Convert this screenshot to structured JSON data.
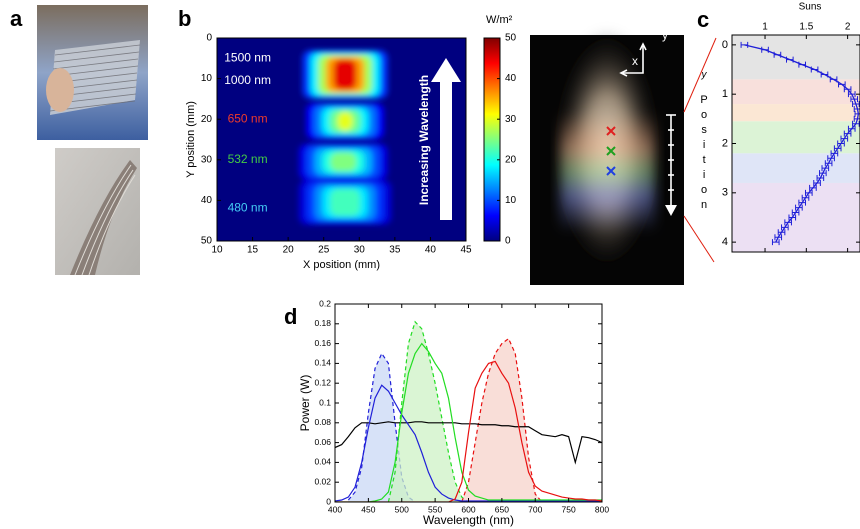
{
  "panel_labels": [
    "a",
    "b",
    "c",
    "d"
  ],
  "beam_photo": {
    "axes": [
      "x",
      "y"
    ]
  },
  "chart_data": [
    {
      "type": "heatmap",
      "xlabel": "X position (mm)",
      "ylabel": "Y position (mm)",
      "xlim": [
        10,
        45
      ],
      "xticks": [
        10,
        15,
        20,
        25,
        30,
        35,
        40,
        45
      ],
      "ylim": [
        0,
        50
      ],
      "yticks": [
        0,
        10,
        20,
        30,
        40,
        50
      ],
      "y_inverted": true,
      "regions": [
        {
          "x": [
            22,
            34
          ],
          "y": [
            3,
            15
          ],
          "value": 45
        },
        {
          "x": [
            22.5,
            33.5
          ],
          "y": [
            16,
            25
          ],
          "value": 30
        },
        {
          "x": [
            21.5,
            34
          ],
          "y": [
            26,
            35
          ],
          "value": 25
        },
        {
          "x": [
            21.5,
            34.5
          ],
          "y": [
            35,
            46
          ],
          "value": 22
        }
      ],
      "annotations": [
        {
          "text": "1500 nm",
          "color": "#ffffff"
        },
        {
          "text": "1000 nm",
          "color": "#ffffff"
        },
        {
          "text": "650 nm",
          "color": "#ee3a2a"
        },
        {
          "text": "532 nm",
          "color": "#44cc44"
        },
        {
          "text": "480 nm",
          "color": "#44ccf4"
        }
      ],
      "arrow_label": "Increasing Wavelength",
      "colorbar": {
        "label": "W/m²",
        "lim": [
          0,
          50
        ],
        "ticks": [
          0,
          10,
          20,
          30,
          40,
          50
        ],
        "colormap": "jet"
      }
    },
    {
      "type": "line",
      "xlabel": "Suns",
      "ylabel": "Position",
      "ylabel_var": "y",
      "xlim": [
        0.6,
        2.15
      ],
      "xticks": [
        1,
        1.5,
        2
      ],
      "ylim": [
        -0.2,
        4.2
      ],
      "yticks": [
        0,
        1,
        2,
        3,
        4
      ],
      "y_inverted": true,
      "bands": [
        {
          "range": [
            -0.2,
            0.7
          ],
          "color": "#e4e4e4"
        },
        {
          "range": [
            0.7,
            1.2
          ],
          "color": "#f8e0dc"
        },
        {
          "range": [
            1.2,
            1.55
          ],
          "color": "#fbe7d4"
        },
        {
          "range": [
            1.55,
            2.2
          ],
          "color": "#dcf3d6"
        },
        {
          "range": [
            2.2,
            2.8
          ],
          "color": "#dfe5f7"
        },
        {
          "range": [
            2.8,
            4.2
          ],
          "color": "#ece0f3"
        }
      ],
      "series": [
        {
          "color": "#1f1fd8",
          "error": 0.04,
          "y": [
            0,
            0.1,
            0.2,
            0.3,
            0.4,
            0.5,
            0.6,
            0.7,
            0.8,
            0.9,
            1,
            1.1,
            1.2,
            1.3,
            1.4,
            1.5,
            1.6,
            1.7,
            1.8,
            1.9,
            2,
            2.1,
            2.2,
            2.3,
            2.4,
            2.5,
            2.6,
            2.7,
            2.8,
            2.9,
            3,
            3.1,
            3.2,
            3.3,
            3.4,
            3.5,
            3.6,
            3.7,
            3.8,
            3.9,
            4
          ],
          "values": [
            0.75,
            1.0,
            1.15,
            1.3,
            1.45,
            1.6,
            1.72,
            1.83,
            1.93,
            2.0,
            2.05,
            2.08,
            2.1,
            2.12,
            2.13,
            2.12,
            2.1,
            2.05,
            2.0,
            1.96,
            1.92,
            1.88,
            1.84,
            1.8,
            1.77,
            1.73,
            1.7,
            1.67,
            1.63,
            1.58,
            1.53,
            1.49,
            1.45,
            1.41,
            1.37,
            1.33,
            1.28,
            1.24,
            1.2,
            1.16,
            1.13
          ]
        }
      ]
    },
    {
      "type": "line",
      "xlabel": "Wavelength (nm)",
      "ylabel": "Power (W)",
      "xlim": [
        400,
        800
      ],
      "xticks": [
        400,
        450,
        500,
        550,
        600,
        650,
        700,
        750,
        800
      ],
      "ylim": [
        0,
        0.2
      ],
      "yticks": [
        0,
        0.02,
        0.04,
        0.06,
        0.08,
        0.1,
        0.12,
        0.14,
        0.16,
        0.18,
        0.2
      ],
      "x": [
        400,
        410,
        420,
        430,
        440,
        450,
        460,
        470,
        480,
        490,
        500,
        510,
        520,
        530,
        540,
        550,
        560,
        570,
        580,
        590,
        600,
        610,
        620,
        630,
        640,
        650,
        660,
        670,
        680,
        690,
        700,
        710,
        720,
        730,
        740,
        750,
        760,
        770,
        780,
        790,
        800
      ],
      "series": [
        {
          "color": "#1f1fd8",
          "fill": "#c9d8f6",
          "dash": true,
          "values": [
            null,
            null,
            0.002,
            0.01,
            0.035,
            0.09,
            0.135,
            0.15,
            0.14,
            0.08,
            0.025,
            0.005,
            0,
            null,
            null,
            null,
            null,
            null,
            null,
            null,
            null,
            null,
            null,
            null,
            null,
            null,
            null,
            null,
            null,
            null,
            null,
            null,
            null,
            null,
            null,
            null,
            null,
            null,
            null,
            null,
            null
          ]
        },
        {
          "color": "#22dd22",
          "fill": "#cdf2c6",
          "dash": true,
          "values": [
            null,
            null,
            null,
            null,
            null,
            null,
            null,
            null,
            0,
            0.03,
            0.1,
            0.16,
            0.182,
            0.175,
            0.15,
            0.12,
            0.085,
            0.05,
            0.02,
            0.005,
            0,
            null,
            null,
            null,
            null,
            null,
            null,
            null,
            null,
            null,
            null,
            null,
            null,
            null,
            null,
            null,
            null,
            null,
            null,
            null,
            null
          ]
        },
        {
          "color": "#e81010",
          "fill": "#f7d3cb",
          "dash": true,
          "values": [
            null,
            null,
            null,
            null,
            null,
            null,
            null,
            null,
            null,
            null,
            null,
            null,
            null,
            null,
            null,
            null,
            null,
            null,
            null,
            0,
            0.02,
            0.06,
            0.1,
            0.13,
            0.15,
            0.16,
            0.165,
            0.15,
            0.105,
            0.045,
            0.008,
            0,
            null,
            null,
            null,
            null,
            null,
            null,
            null,
            null,
            null
          ]
        },
        {
          "color": "#000000",
          "values": [
            0.055,
            0.058,
            0.066,
            0.075,
            0.08,
            0.08,
            0.079,
            0.08,
            0.081,
            0.08,
            0.08,
            0.08,
            0.081,
            0.081,
            0.08,
            0.08,
            0.08,
            0.08,
            0.08,
            0.079,
            0.079,
            0.079,
            0.078,
            0.078,
            0.078,
            0.077,
            0.077,
            0.076,
            0.076,
            0.076,
            0.072,
            0.068,
            0.067,
            0.066,
            0.068,
            0.066,
            0.04,
            0.066,
            0.065,
            0.063,
            0.06
          ]
        },
        {
          "color": "#1f1fd8",
          "values": [
            0.001,
            0.002,
            0.005,
            0.015,
            0.04,
            0.075,
            0.105,
            0.118,
            0.112,
            0.1,
            0.088,
            0.078,
            0.068,
            0.05,
            0.03,
            0.015,
            0.008,
            0.004,
            0.002,
            0.001,
            0.001,
            0.001,
            0.001,
            0.001,
            0.001,
            0.001,
            0.001,
            0.001,
            0.001,
            0.001,
            0.001,
            0.001,
            0.001,
            0.001,
            0.001,
            0.001,
            0.001,
            0.001,
            0.001,
            0.001,
            0.001
          ]
        },
        {
          "color": "#22dd22",
          "values": [
            0,
            0,
            0,
            0,
            0,
            0,
            0.001,
            0.003,
            0.01,
            0.04,
            0.09,
            0.13,
            0.15,
            0.16,
            0.152,
            0.14,
            0.13,
            0.105,
            0.065,
            0.03,
            0.012,
            0.006,
            0.004,
            0.002,
            0.002,
            0.002,
            0.002,
            0.002,
            0.002,
            0.002,
            0.002,
            0.002,
            0.002,
            0.002,
            0.002,
            0.002,
            0.002,
            0.002,
            0.002,
            0.002,
            0.002
          ]
        },
        {
          "color": "#e81010",
          "values": [
            0,
            0,
            0,
            0,
            0,
            0,
            0,
            0,
            0,
            0,
            0,
            0,
            0,
            0,
            0,
            0,
            0,
            0,
            0.003,
            0.02,
            0.07,
            0.115,
            0.13,
            0.14,
            0.142,
            0.13,
            0.12,
            0.095,
            0.06,
            0.03,
            0.016,
            0.011,
            0.009,
            0.007,
            0.005,
            0.004,
            0.003,
            0.003,
            0.002,
            0.002,
            0.001
          ]
        }
      ]
    }
  ]
}
